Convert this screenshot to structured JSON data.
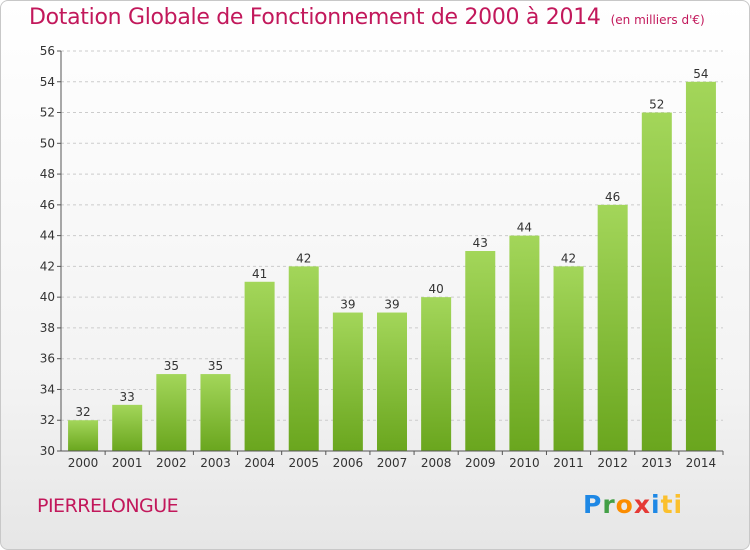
{
  "header": {
    "title": "Dotation Globale de Fonctionnement de 2000 à 2014",
    "unit": "(en milliers d'€)"
  },
  "footer": {
    "place": "PIERRELONGUE",
    "logo": [
      "P",
      "r",
      "o",
      "x",
      "i",
      "ti"
    ]
  },
  "colors": {
    "title": "#c2185b",
    "bar_light": "#a3d65a",
    "bar_dark": "#6aa61e",
    "grid": "#cccccc",
    "axis": "#555555"
  },
  "chart_data": {
    "type": "bar",
    "title": "Dotation Globale de Fonctionnement de 2000 à 2014",
    "categories": [
      "2000",
      "2001",
      "2002",
      "2003",
      "2004",
      "2005",
      "2006",
      "2007",
      "2008",
      "2009",
      "2010",
      "2011",
      "2012",
      "2013",
      "2014"
    ],
    "values": [
      32,
      33,
      35,
      35,
      41,
      42,
      39,
      39,
      40,
      43,
      44,
      42,
      46,
      52,
      54
    ],
    "ylim": [
      30,
      56
    ],
    "yticks": [
      30,
      32,
      34,
      36,
      38,
      40,
      42,
      44,
      46,
      48,
      50,
      52,
      54,
      56
    ],
    "grid": true,
    "xlabel": "",
    "ylabel": ""
  }
}
